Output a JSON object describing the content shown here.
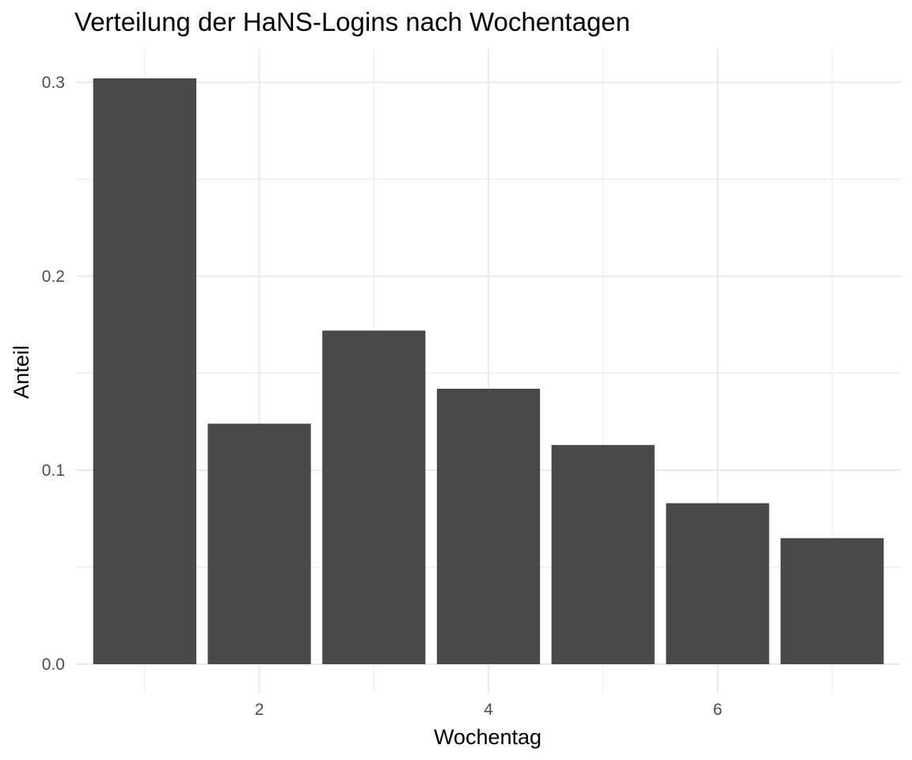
{
  "chart_data": {
    "type": "bar",
    "title": "Verteilung der HaNS-Logins nach Wochentagen",
    "xlabel": "Wochentag",
    "ylabel": "Anteil",
    "x": [
      1,
      2,
      3,
      4,
      5,
      6,
      7
    ],
    "values": [
      0.302,
      0.124,
      0.172,
      0.142,
      0.113,
      0.083,
      0.065
    ],
    "xlim": [
      0.4,
      7.6
    ],
    "ylim": [
      -0.0151,
      0.3171
    ],
    "x_ticks": [
      2,
      4,
      6
    ],
    "x_tick_labels": [
      "2",
      "4",
      "6"
    ],
    "y_ticks": [
      0,
      0.1,
      0.2,
      0.3
    ],
    "y_tick_labels": [
      "0.0",
      "0.1",
      "0.2",
      "0.3"
    ],
    "bar_width": 0.9,
    "bar_color": "#494949",
    "grid": true,
    "legend": "none"
  }
}
